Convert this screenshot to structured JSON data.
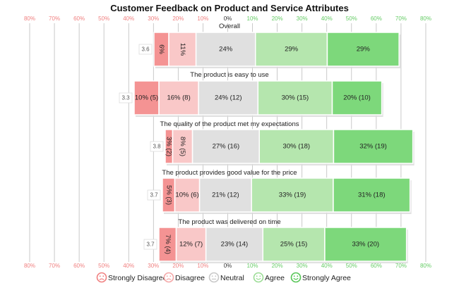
{
  "chart_data": {
    "type": "bar",
    "subtype": "diverging-stacked-horizontal",
    "title": "Customer Feedback on Product and Service Attributes",
    "x_ticks": [
      "80%",
      "70%",
      "60%",
      "50%",
      "40%",
      "30%",
      "20%",
      "10%",
      "0%",
      "10%",
      "20%",
      "30%",
      "40%",
      "50%",
      "60%",
      "70%",
      "80%"
    ],
    "xlim": [
      -80,
      80
    ],
    "grid": true,
    "legend_position": "bottom",
    "categories": [
      "Strongly Disagree",
      "Disagree",
      "Neutral",
      "Agree",
      "Strongly Agree"
    ],
    "colors": {
      "Strongly Disagree": "#f49393",
      "Disagree": "#f9c8c8",
      "Neutral": "#e0e0e0",
      "Agree": "#b5e6ae",
      "Strongly Agree": "#7dd87b",
      "negative_tick": "#f08080",
      "positive_tick": "#66cc66",
      "grid": "#bdbdbd"
    },
    "questions": [
      {
        "name": "Overall",
        "mean": "3.6",
        "values": [
          6,
          11,
          24,
          29,
          29
        ],
        "labels": [
          "6%",
          "11%",
          "24%",
          "29%",
          "29%"
        ],
        "rotated": [
          true,
          true,
          false,
          false,
          false
        ]
      },
      {
        "name": "The product is easy to use",
        "mean": "3.3",
        "values": [
          10,
          16,
          24,
          30,
          20
        ],
        "labels": [
          "10% (5)",
          "16% (8)",
          "24% (12)",
          "30% (15)",
          "20% (10)"
        ],
        "rotated": [
          false,
          false,
          false,
          false,
          false
        ]
      },
      {
        "name": "The quality of the product met my expectations",
        "mean": "3.8",
        "values": [
          3,
          8,
          27,
          30,
          32
        ],
        "labels": [
          "3% (2)",
          "8% (5)",
          "27% (16)",
          "30% (18)",
          "32% (19)"
        ],
        "rotated": [
          true,
          true,
          false,
          false,
          false
        ]
      },
      {
        "name": "The product provides good value for the price",
        "mean": "3.7",
        "values": [
          5,
          10,
          21,
          33,
          31
        ],
        "labels": [
          "5% (3)",
          "10% (6)",
          "21% (12)",
          "33% (19)",
          "31% (18)"
        ],
        "rotated": [
          true,
          false,
          false,
          false,
          false
        ]
      },
      {
        "name": "The product was delivered on time",
        "mean": "3.7",
        "values": [
          7,
          12,
          23,
          25,
          33
        ],
        "labels": [
          "7% (4)",
          "12% (7)",
          "23% (14)",
          "25% (15)",
          "33% (20)"
        ],
        "rotated": [
          true,
          false,
          false,
          false,
          false
        ]
      }
    ]
  }
}
